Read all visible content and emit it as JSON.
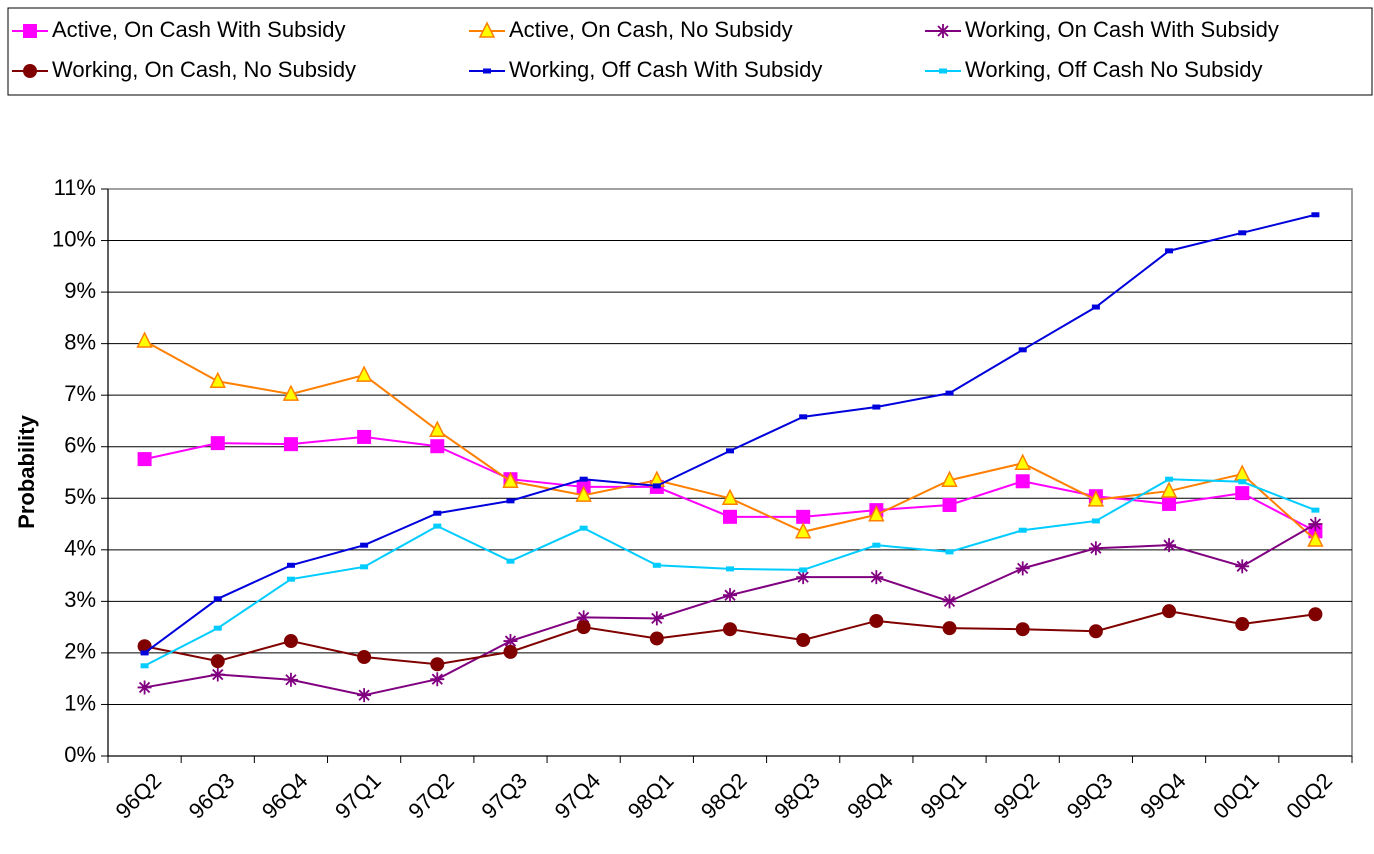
{
  "chart_data": {
    "type": "line",
    "y_label": "Probability",
    "categories": [
      "96Q2",
      "96Q3",
      "96Q4",
      "97Q1",
      "97Q2",
      "97Q3",
      "97Q4",
      "98Q1",
      "98Q2",
      "98Q3",
      "98Q4",
      "99Q1",
      "99Q2",
      "99Q3",
      "99Q4",
      "00Q1",
      "00Q2"
    ],
    "series": [
      {
        "name": "Active, On Cash With Subsidy",
        "color": "#ff00ff",
        "marker": "square",
        "values": [
          5.76,
          6.07,
          6.05,
          6.19,
          6.01,
          5.37,
          5.22,
          5.22,
          4.64,
          4.64,
          4.77,
          4.87,
          5.33,
          5.04,
          4.89,
          5.1,
          4.36
        ]
      },
      {
        "name": "Active, On Cash, No Subsidy",
        "color": "#ff7f00",
        "marker": "triangle",
        "values": [
          8.05,
          7.27,
          7.02,
          7.39,
          6.32,
          5.33,
          5.06,
          5.35,
          5.0,
          4.35,
          4.68,
          5.35,
          5.68,
          4.97,
          5.14,
          5.47,
          4.19
        ]
      },
      {
        "name": "Working, On Cash With Subsidy",
        "color": "#800080",
        "marker": "star",
        "values": [
          1.33,
          1.58,
          1.48,
          1.18,
          1.49,
          2.23,
          2.69,
          2.67,
          3.12,
          3.47,
          3.47,
          3.0,
          3.64,
          4.03,
          4.09,
          3.68,
          4.5
        ]
      },
      {
        "name": "Working, On Cash, No Subsidy",
        "color": "#800000",
        "marker": "circle",
        "values": [
          2.13,
          1.84,
          2.23,
          1.92,
          1.78,
          2.02,
          2.5,
          2.28,
          2.46,
          2.25,
          2.62,
          2.48,
          2.46,
          2.42,
          2.81,
          2.56,
          2.75
        ]
      },
      {
        "name": "Working, Off Cash With Subsidy",
        "color": "#0000dd",
        "marker": "dash",
        "values": [
          2.0,
          3.05,
          3.7,
          4.09,
          4.71,
          4.95,
          5.37,
          5.24,
          5.92,
          6.58,
          6.77,
          7.04,
          7.88,
          8.71,
          9.8,
          10.15,
          10.5
        ]
      },
      {
        "name": "Working, Off Cash No Subsidy",
        "color": "#00ccff",
        "marker": "dash",
        "values": [
          1.75,
          2.48,
          3.43,
          3.67,
          4.46,
          3.78,
          4.42,
          3.7,
          3.63,
          3.61,
          4.09,
          3.96,
          4.38,
          4.56,
          5.37,
          5.32,
          4.77
        ]
      }
    ],
    "ylim": [
      0,
      11
    ],
    "yticks": [
      {
        "value": 0,
        "label": "0%"
      },
      {
        "value": 1,
        "label": "1%"
      },
      {
        "value": 2,
        "label": "2%"
      },
      {
        "value": 3,
        "label": "3%"
      },
      {
        "value": 4,
        "label": "4%"
      },
      {
        "value": 5,
        "label": "5%"
      },
      {
        "value": 6,
        "label": "6%"
      },
      {
        "value": 7,
        "label": "7%"
      },
      {
        "value": 8,
        "label": "8%"
      },
      {
        "value": 9,
        "label": "9%"
      },
      {
        "value": 10,
        "label": "10%"
      },
      {
        "value": 11,
        "label": "11%"
      }
    ],
    "grid": true,
    "legend": "top"
  }
}
